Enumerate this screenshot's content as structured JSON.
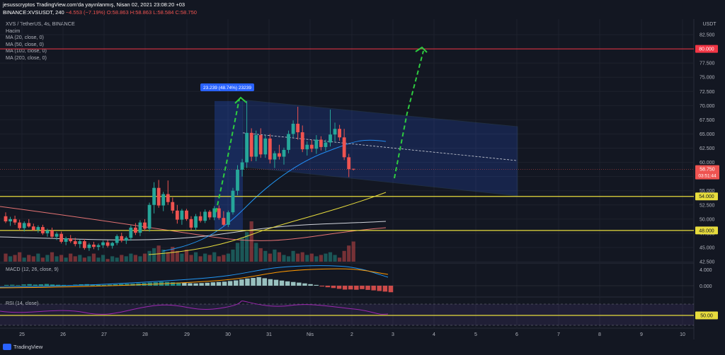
{
  "header": {
    "line1": "jesusscryptos TradingView.com'da yayınlanmış, Nisan 02, 2021 23:08:20 +03",
    "line2_prefix": "BINANCE:XVSUSDT, 240",
    "line2_change": "−4.553 (−7.19%)",
    "line2_ohlc": "O:58.863 H:58.863 L:58.584 C:58.750"
  },
  "legend": {
    "title": "XVS / TetherUS, 4s, BINANCE",
    "lines": [
      "Hacim",
      "MA (20, close, 0)",
      "MA (50, close, 0)",
      "MA (100, close, 0)",
      "MA (200, close, 0)"
    ]
  },
  "macd_label": "MACD (12, 26, close, 9)",
  "rsi_label": "RSI (14, close)",
  "currency": "USDT",
  "price_ticks": [
    "82.500",
    "80.000",
    "77.500",
    "75.000",
    "72.500",
    "70.000",
    "67.500",
    "65.000",
    "62.500",
    "60.000",
    "57.500",
    "55.000",
    "52.500",
    "50.000",
    "47.500",
    "45.000",
    "42.500"
  ],
  "price_tick_values": [
    82.5,
    80,
    77.5,
    75,
    72.5,
    70,
    67.5,
    65,
    62.5,
    60,
    57.5,
    55,
    52.5,
    50,
    47.5,
    45,
    42.5
  ],
  "markers": {
    "p80": "80.000",
    "p54": "54.000",
    "p48": "48.000",
    "last": "58.750",
    "countdown": "03:51:44",
    "measure": "23.239 (48.74%) 23239"
  },
  "macd_ticks": [
    "4.000",
    "0.000"
  ],
  "rsi_tick": "50.00",
  "date_labels": [
    "25",
    "26",
    "27",
    "28",
    "29",
    "30",
    "31",
    "Nis",
    "2",
    "3",
    "4",
    "5",
    "6",
    "7",
    "8",
    "9",
    "10"
  ],
  "footer_brand": "TradingView",
  "colors": {
    "up": "#26a69a",
    "down": "#ef5350",
    "bg": "#131722",
    "support": "#e7dc3d",
    "resistance": "#f23645",
    "arrow": "#2ecc40",
    "channel": "#2962ff"
  },
  "chart_data": {
    "type": "candlestick",
    "symbol": "XVS / TetherUS",
    "interval": "4s",
    "ylim": [
      42.5,
      83.5
    ],
    "levels": [
      80,
      54,
      48
    ],
    "x": [
      "Mar 25",
      "Mar 26",
      "Mar 27",
      "Mar 28",
      "Mar 29",
      "Mar 30",
      "Mar 31",
      "Nis 1",
      "Apr 2"
    ],
    "candles": [
      {
        "o": 50.5,
        "h": 51.2,
        "l": 49.3,
        "c": 49.6
      },
      {
        "o": 49.6,
        "h": 50.4,
        "l": 48.8,
        "c": 50.0
      },
      {
        "o": 50.0,
        "h": 50.6,
        "l": 49.0,
        "c": 49.4
      },
      {
        "o": 49.4,
        "h": 49.9,
        "l": 48.0,
        "c": 48.4
      },
      {
        "o": 48.4,
        "h": 49.6,
        "l": 47.8,
        "c": 49.3
      },
      {
        "o": 49.3,
        "h": 50.0,
        "l": 48.5,
        "c": 48.7
      },
      {
        "o": 48.7,
        "h": 49.2,
        "l": 47.9,
        "c": 48.1
      },
      {
        "o": 48.1,
        "h": 48.9,
        "l": 47.6,
        "c": 48.6
      },
      {
        "o": 48.6,
        "h": 49.0,
        "l": 47.2,
        "c": 47.5
      },
      {
        "o": 47.5,
        "h": 48.3,
        "l": 46.9,
        "c": 48.0
      },
      {
        "o": 48.0,
        "h": 48.5,
        "l": 46.6,
        "c": 46.9
      },
      {
        "o": 46.9,
        "h": 47.7,
        "l": 46.3,
        "c": 47.4
      },
      {
        "o": 47.4,
        "h": 47.8,
        "l": 45.7,
        "c": 46.0
      },
      {
        "o": 46.0,
        "h": 46.9,
        "l": 45.4,
        "c": 46.6
      },
      {
        "o": 46.6,
        "h": 47.2,
        "l": 45.8,
        "c": 46.1
      },
      {
        "o": 46.1,
        "h": 46.7,
        "l": 45.2,
        "c": 45.6
      },
      {
        "o": 45.6,
        "h": 46.4,
        "l": 44.9,
        "c": 46.1
      },
      {
        "o": 46.1,
        "h": 46.5,
        "l": 44.6,
        "c": 44.9
      },
      {
        "o": 44.9,
        "h": 45.8,
        "l": 44.4,
        "c": 45.5
      },
      {
        "o": 45.5,
        "h": 46.0,
        "l": 44.7,
        "c": 45.1
      },
      {
        "o": 45.1,
        "h": 45.7,
        "l": 44.5,
        "c": 45.4
      },
      {
        "o": 45.4,
        "h": 46.2,
        "l": 44.9,
        "c": 45.9
      },
      {
        "o": 45.9,
        "h": 46.3,
        "l": 45.0,
        "c": 45.3
      },
      {
        "o": 45.3,
        "h": 46.0,
        "l": 44.8,
        "c": 45.8
      },
      {
        "o": 45.8,
        "h": 47.3,
        "l": 45.4,
        "c": 47.0
      },
      {
        "o": 47.0,
        "h": 47.6,
        "l": 45.9,
        "c": 46.2
      },
      {
        "o": 46.2,
        "h": 47.0,
        "l": 45.6,
        "c": 46.7
      },
      {
        "o": 46.7,
        "h": 48.9,
        "l": 46.2,
        "c": 48.5
      },
      {
        "o": 48.5,
        "h": 49.3,
        "l": 47.2,
        "c": 47.6
      },
      {
        "o": 47.6,
        "h": 49.8,
        "l": 47.0,
        "c": 49.4
      },
      {
        "o": 49.4,
        "h": 50.0,
        "l": 47.9,
        "c": 48.3
      },
      {
        "o": 48.3,
        "h": 52.9,
        "l": 47.8,
        "c": 52.5
      },
      {
        "o": 52.5,
        "h": 56.5,
        "l": 51.0,
        "c": 55.5
      },
      {
        "o": 55.5,
        "h": 56.9,
        "l": 52.0,
        "c": 52.4
      },
      {
        "o": 52.4,
        "h": 54.8,
        "l": 51.4,
        "c": 54.4
      },
      {
        "o": 54.4,
        "h": 56.8,
        "l": 52.5,
        "c": 53.0
      },
      {
        "o": 53.0,
        "h": 53.8,
        "l": 51.0,
        "c": 51.5
      },
      {
        "o": 51.5,
        "h": 52.5,
        "l": 49.2,
        "c": 49.9
      },
      {
        "o": 49.9,
        "h": 51.8,
        "l": 49.0,
        "c": 51.5
      },
      {
        "o": 51.5,
        "h": 51.8,
        "l": 49.7,
        "c": 50.0
      },
      {
        "o": 50.0,
        "h": 50.5,
        "l": 48.1,
        "c": 48.5
      },
      {
        "o": 48.5,
        "h": 50.9,
        "l": 48.0,
        "c": 50.5
      },
      {
        "o": 50.5,
        "h": 51.3,
        "l": 49.4,
        "c": 49.7
      },
      {
        "o": 49.7,
        "h": 51.7,
        "l": 49.3,
        "c": 51.3
      },
      {
        "o": 51.3,
        "h": 51.6,
        "l": 49.9,
        "c": 50.3
      },
      {
        "o": 50.3,
        "h": 52.3,
        "l": 49.8,
        "c": 51.9
      },
      {
        "o": 51.9,
        "h": 52.4,
        "l": 49.9,
        "c": 50.2
      },
      {
        "o": 50.2,
        "h": 51.4,
        "l": 48.8,
        "c": 49.0
      },
      {
        "o": 49.0,
        "h": 51.5,
        "l": 48.6,
        "c": 51.2
      },
      {
        "o": 51.2,
        "h": 55.5,
        "l": 50.8,
        "c": 55.0
      },
      {
        "o": 55.0,
        "h": 59.5,
        "l": 54.2,
        "c": 58.7
      },
      {
        "o": 58.7,
        "h": 60.6,
        "l": 57.5,
        "c": 60.0
      },
      {
        "o": 60.0,
        "h": 70.8,
        "l": 59.0,
        "c": 65.2
      },
      {
        "o": 65.2,
        "h": 66.0,
        "l": 60.2,
        "c": 61.0
      },
      {
        "o": 61.0,
        "h": 65.6,
        "l": 60.2,
        "c": 64.8
      },
      {
        "o": 64.8,
        "h": 66.0,
        "l": 60.8,
        "c": 61.4
      },
      {
        "o": 61.4,
        "h": 64.8,
        "l": 60.8,
        "c": 64.2
      },
      {
        "o": 64.2,
        "h": 65.0,
        "l": 59.8,
        "c": 60.5
      },
      {
        "o": 60.5,
        "h": 62.0,
        "l": 59.0,
        "c": 61.6
      },
      {
        "o": 61.6,
        "h": 63.1,
        "l": 60.5,
        "c": 61.0
      },
      {
        "o": 61.0,
        "h": 62.6,
        "l": 59.6,
        "c": 62.2
      },
      {
        "o": 62.2,
        "h": 65.6,
        "l": 61.6,
        "c": 65.0
      },
      {
        "o": 65.0,
        "h": 67.4,
        "l": 64.4,
        "c": 66.8
      },
      {
        "o": 66.8,
        "h": 69.8,
        "l": 64.0,
        "c": 65.3
      },
      {
        "o": 65.3,
        "h": 66.5,
        "l": 61.8,
        "c": 62.3
      },
      {
        "o": 62.3,
        "h": 63.7,
        "l": 61.2,
        "c": 63.1
      },
      {
        "o": 63.1,
        "h": 64.0,
        "l": 61.8,
        "c": 62.4
      },
      {
        "o": 62.4,
        "h": 64.8,
        "l": 61.5,
        "c": 64.0
      },
      {
        "o": 64.0,
        "h": 64.6,
        "l": 62.1,
        "c": 62.7
      },
      {
        "o": 62.7,
        "h": 64.0,
        "l": 62.0,
        "c": 63.5
      },
      {
        "o": 63.5,
        "h": 69.3,
        "l": 62.8,
        "c": 64.9
      },
      {
        "o": 64.9,
        "h": 67.0,
        "l": 63.7,
        "c": 65.9
      },
      {
        "o": 65.9,
        "h": 66.6,
        "l": 63.8,
        "c": 64.4
      },
      {
        "o": 64.4,
        "h": 65.9,
        "l": 60.4,
        "c": 60.9
      },
      {
        "o": 60.9,
        "h": 61.5,
        "l": 57.4,
        "c": 58.8
      },
      {
        "o": 58.863,
        "h": 58.863,
        "l": 58.584,
        "c": 58.75
      }
    ],
    "channel": {
      "upper": [
        71.0,
        66.3
      ],
      "lower": [
        59.2,
        54.1
      ],
      "mid": [
        65.2,
        60.3
      ]
    },
    "projection_target": 80.0,
    "measured_move": {
      "change": 23.239,
      "percent": 48.74
    },
    "macd": {
      "labels": [
        "4.000",
        "0.000"
      ]
    },
    "rsi": {
      "level": 50
    }
  }
}
